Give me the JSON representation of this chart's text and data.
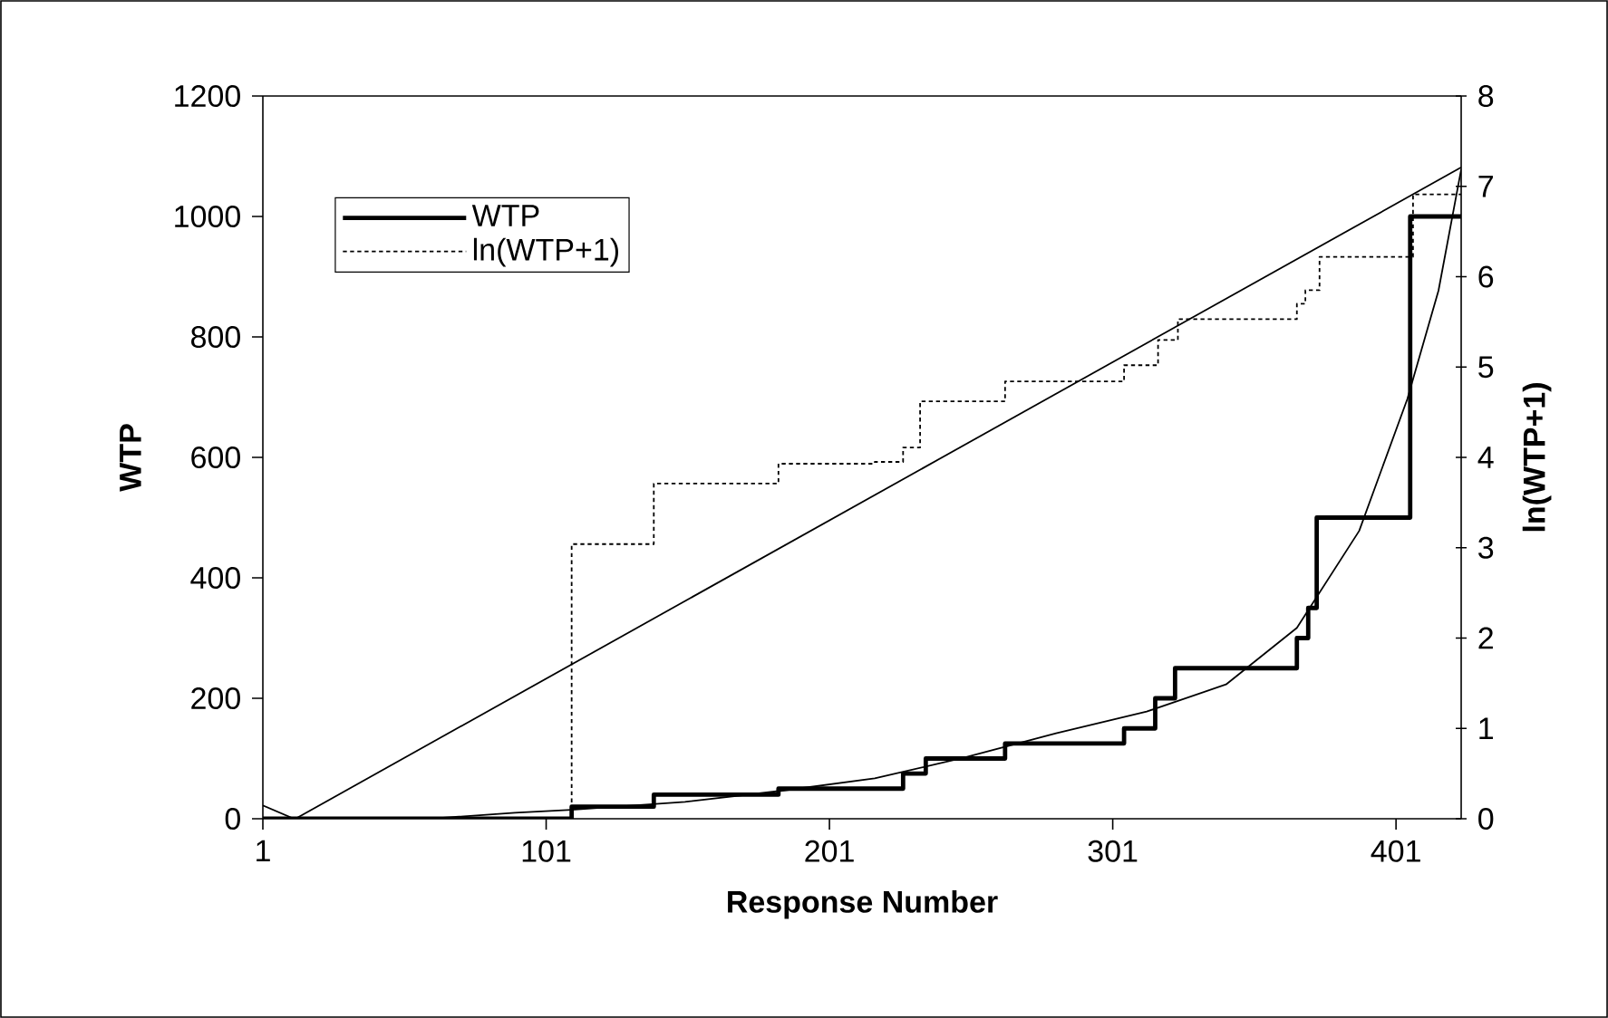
{
  "chart_data": {
    "type": "step",
    "xlabel": "Response Number",
    "ylabel": "WTP",
    "y2label": "ln(WTP+1)",
    "xlim": [
      1,
      424
    ],
    "xticks": [
      1,
      101,
      201,
      301,
      401
    ],
    "ylim": [
      0,
      1200
    ],
    "yticks": [
      0,
      200,
      400,
      600,
      800,
      1000,
      1200
    ],
    "y2lim": [
      0,
      8
    ],
    "y2ticks": [
      0,
      1,
      2,
      3,
      4,
      5,
      6,
      7,
      8
    ],
    "legend": "top left",
    "marker": "none",
    "series": [
      {
        "name": "WTP",
        "color": "#000000",
        "line_style": "solid",
        "x": [
          1,
          110,
          139,
          183,
          227,
          235,
          263,
          305,
          316,
          323,
          366,
          370,
          373,
          406,
          424
        ],
        "values": [
          0,
          20,
          40,
          50,
          75,
          100,
          125,
          150,
          200,
          250,
          300,
          350,
          500,
          1000,
          1000
        ]
      },
      {
        "name": "ln(WTP+1)",
        "axis": "y2",
        "color": "#000000",
        "line_style": "dashed",
        "x": [
          1,
          110,
          139,
          183,
          217,
          227,
          233,
          263,
          305,
          317,
          324,
          366,
          369,
          374,
          407,
          424
        ],
        "values": [
          0,
          3.04,
          3.71,
          3.93,
          3.95,
          4.11,
          4.62,
          4.84,
          5.02,
          5.3,
          5.53,
          5.7,
          5.85,
          6.22,
          6.91,
          6.91
        ]
      },
      {
        "type": "line",
        "color": "#000000",
        "line_style": "solid",
        "x": [
          1,
          12,
          60,
          90,
          110,
          150,
          185,
          217,
          249,
          281,
          313,
          341,
          366,
          388,
          405,
          416,
          424
        ],
        "values": [
          22,
          0,
          0,
          10,
          15,
          28,
          47,
          67,
          102,
          142,
          178,
          223,
          317,
          478,
          697,
          877,
          1078
        ]
      },
      {
        "type": "line",
        "axis": "y2",
        "color": "#000000",
        "line_style": "solid",
        "x": [
          12.5,
          424
        ],
        "values": [
          0,
          7.21
        ]
      }
    ]
  }
}
